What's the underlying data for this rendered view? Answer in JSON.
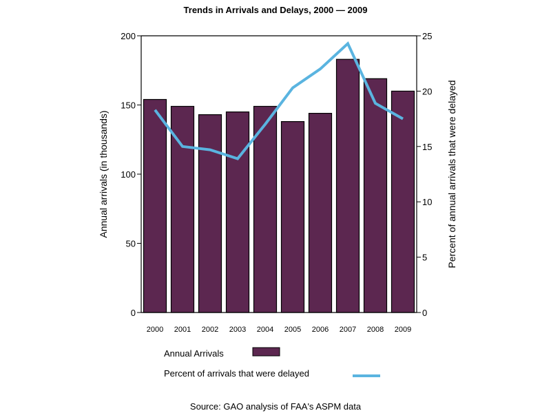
{
  "chart_data": {
    "type": "bar",
    "title": "Trends in Arrivals and Delays, 2000 — 2009",
    "categories": [
      "2000",
      "2001",
      "2002",
      "2003",
      "2004",
      "2005",
      "2006",
      "2007",
      "2008",
      "2009"
    ],
    "series": [
      {
        "name": "Annual Arrivals",
        "type": "bar",
        "axis": "left",
        "color": "#5c2750",
        "values": [
          154,
          149,
          143,
          145,
          149,
          138,
          144,
          183,
          169,
          160
        ]
      },
      {
        "name": "Percent of arrivals that were delayed",
        "type": "line",
        "axis": "right",
        "color": "#5ab4e0",
        "values": [
          18.3,
          15.0,
          14.7,
          13.9,
          17.0,
          20.3,
          22.0,
          24.3,
          18.9,
          17.5
        ]
      }
    ],
    "ylabel": "Annual arrivals (in thousands)",
    "ylim": [
      0,
      200
    ],
    "yticks": [
      0,
      50,
      100,
      150,
      200
    ],
    "y2label": "Percent of annual arrivals that were delayed",
    "y2lim": [
      0,
      25
    ],
    "y2ticks": [
      0,
      5,
      10,
      15,
      20,
      25
    ],
    "xlabel": "",
    "grid": false,
    "legend": [
      {
        "label": "Annual Arrivals",
        "marker": "box",
        "color": "#5c2750"
      },
      {
        "label": "Percent of arrivals that were delayed",
        "marker": "line",
        "color": "#5ab4e0"
      }
    ],
    "legend_position": "bottom",
    "source": "Source: GAO analysis of FAA's ASPM data"
  }
}
